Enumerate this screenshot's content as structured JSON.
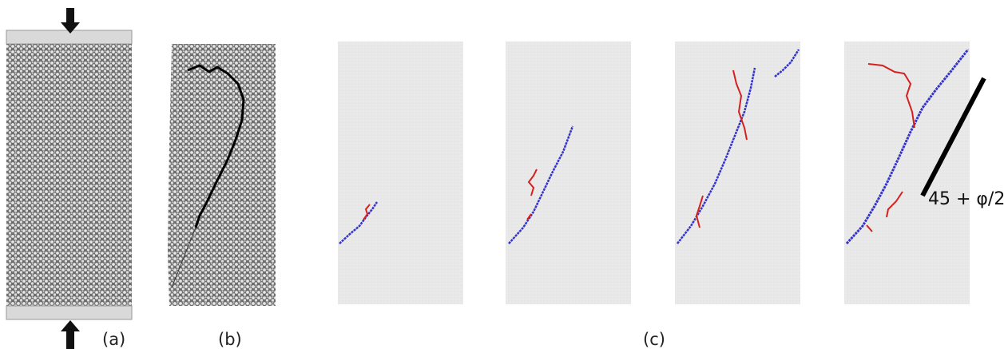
{
  "panels": [
    {
      "label": "(a)"
    },
    {
      "label": "(b)"
    },
    {
      "label": "(c)"
    }
  ],
  "annotation": "45 + φ/2"
}
